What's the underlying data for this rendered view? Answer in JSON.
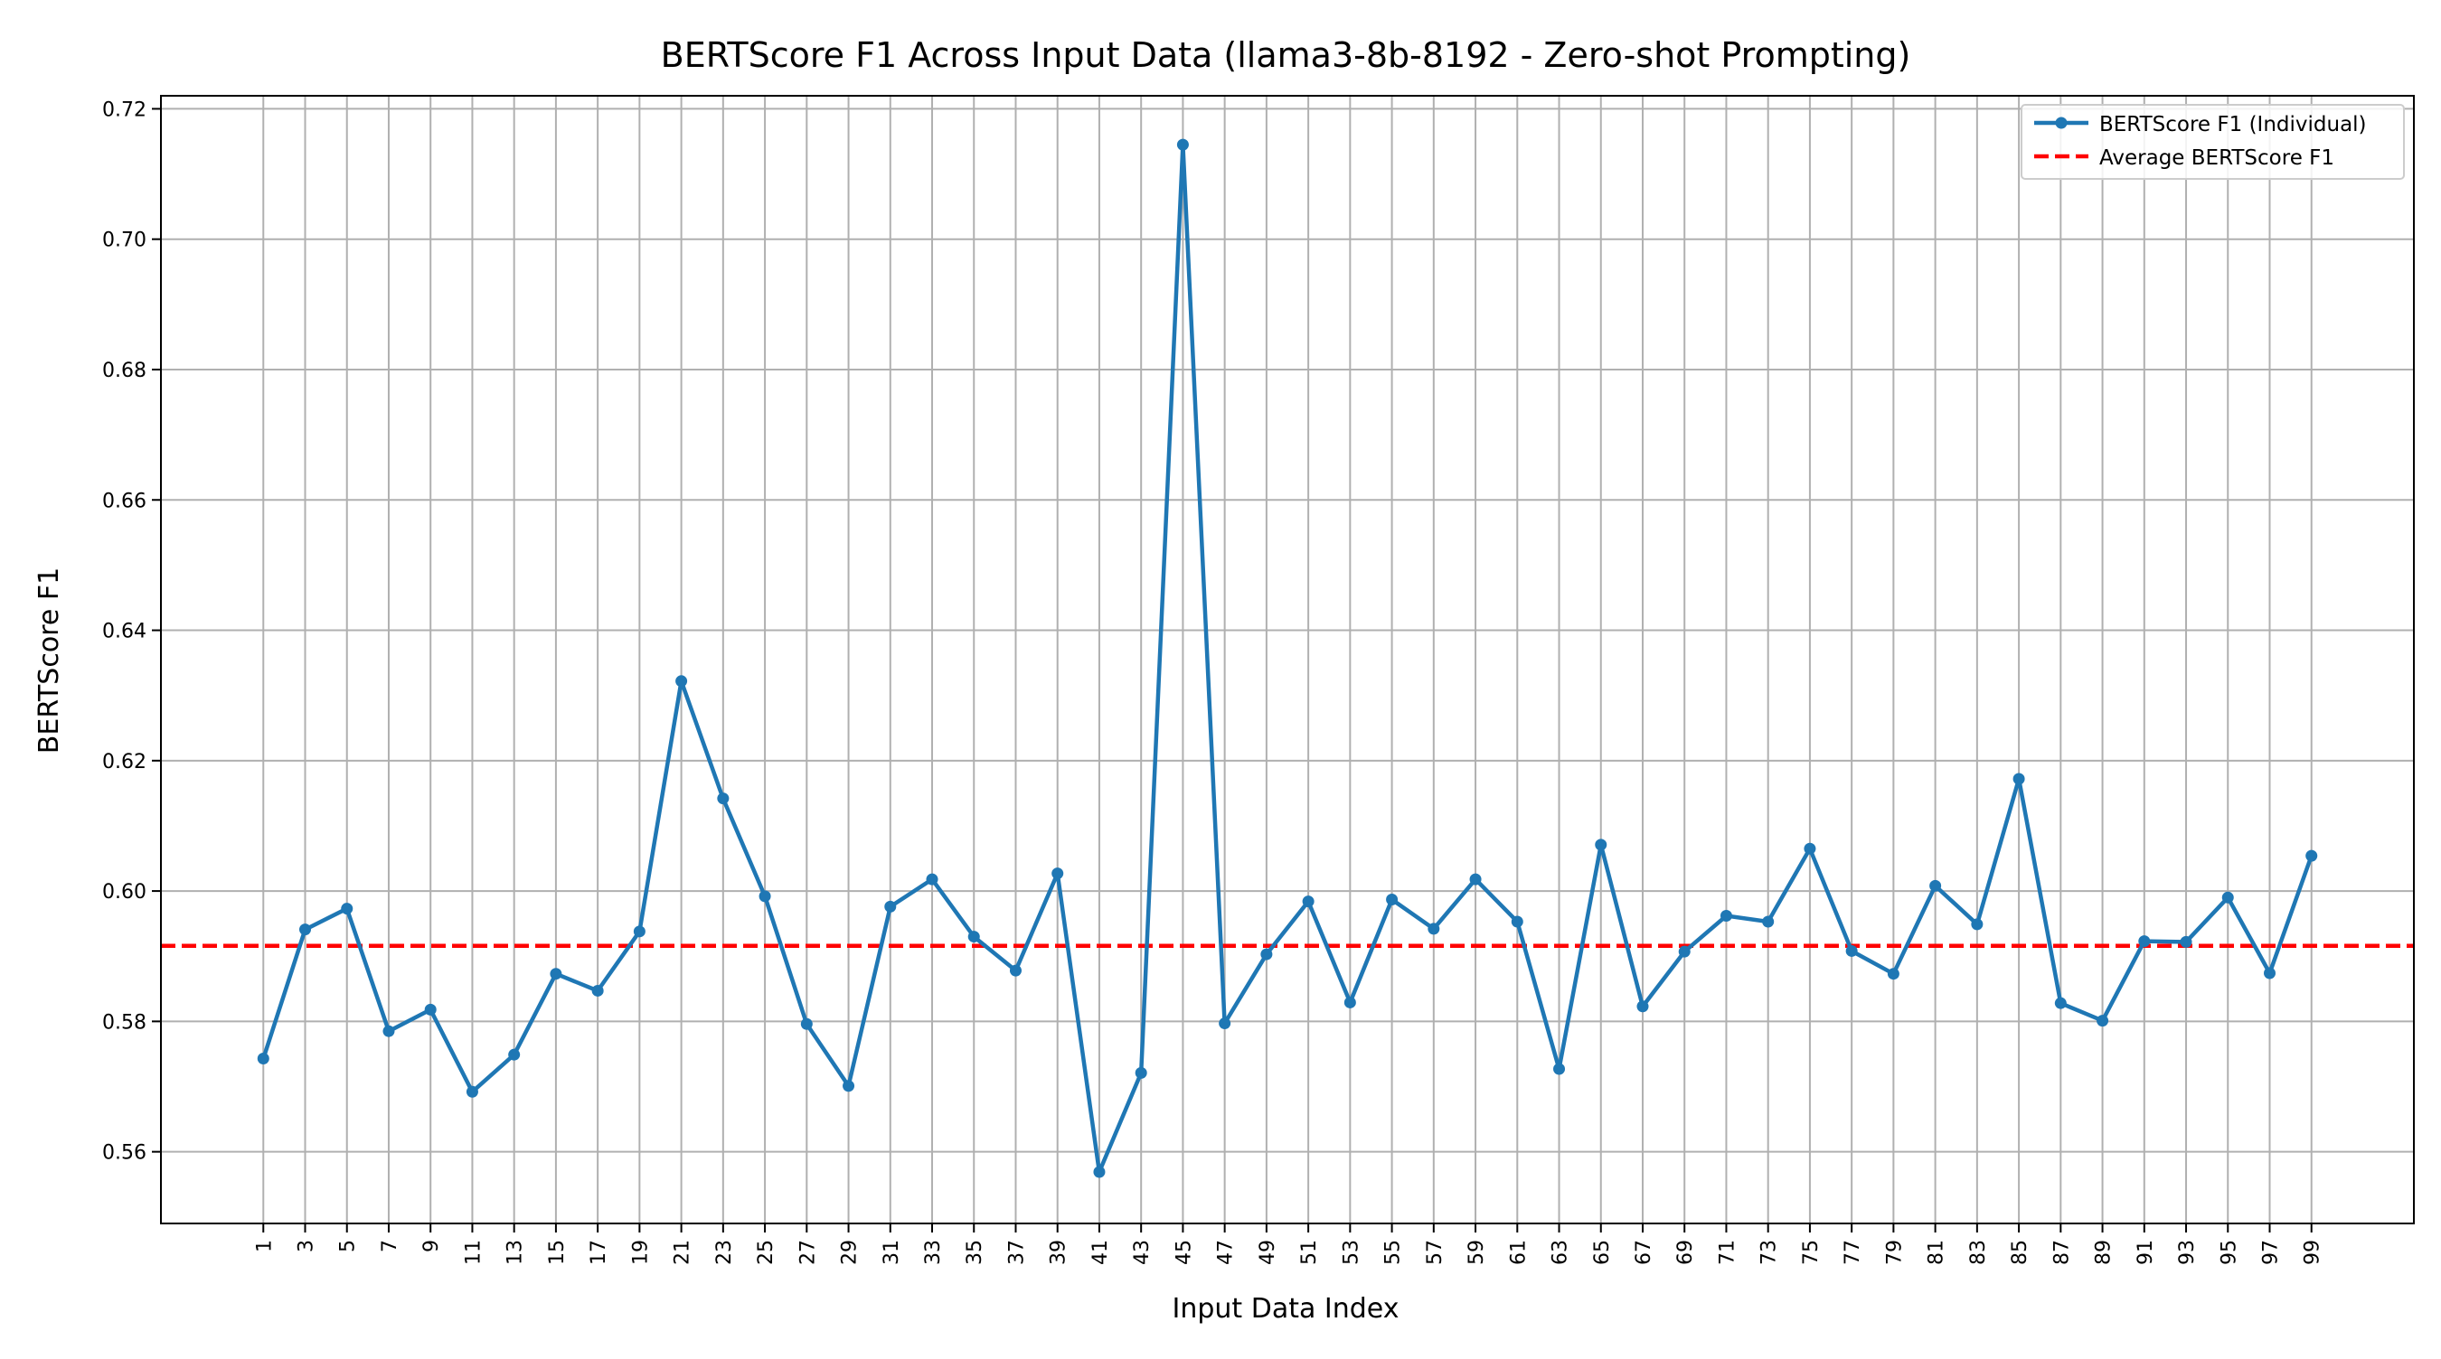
{
  "chart_data": {
    "type": "line",
    "title": "BERTScore F1 Across Input Data (llama3-8b-8192 - Zero-shot Prompting)",
    "xlabel": "Input Data Index",
    "ylabel": "BERTScore F1",
    "x": [
      1,
      3,
      5,
      7,
      9,
      11,
      13,
      15,
      17,
      19,
      21,
      23,
      25,
      27,
      29,
      31,
      33,
      35,
      37,
      39,
      41,
      43,
      45,
      47,
      49,
      51,
      53,
      55,
      57,
      59,
      61,
      63,
      65,
      67,
      69,
      71,
      73,
      75,
      77,
      79,
      81,
      83,
      85,
      87,
      89,
      91,
      93,
      95,
      97,
      99
    ],
    "xticks": [
      1,
      3,
      5,
      7,
      9,
      11,
      13,
      15,
      17,
      19,
      21,
      23,
      25,
      27,
      29,
      31,
      33,
      35,
      37,
      39,
      41,
      43,
      45,
      47,
      49,
      51,
      53,
      55,
      57,
      59,
      61,
      63,
      65,
      67,
      69,
      71,
      73,
      75,
      77,
      79,
      81,
      83,
      85,
      87,
      89,
      91,
      93,
      95,
      97,
      99
    ],
    "xlim": [
      -3.9,
      103.9
    ],
    "ylim": [
      0.549,
      0.722
    ],
    "yticks": [
      "0.56",
      "0.58",
      "0.60",
      "0.62",
      "0.64",
      "0.66",
      "0.68",
      "0.70",
      "0.72"
    ],
    "grid": true,
    "legend_position": "top-right",
    "series": [
      {
        "name": "BERTScore F1 (Individual)",
        "color": "#1f77b4",
        "style": "line-with-markers",
        "values": [
          0.5743,
          0.5941,
          0.5973,
          0.5785,
          0.5818,
          0.5692,
          0.5749,
          0.5873,
          0.5847,
          0.5938,
          0.6322,
          0.6142,
          0.5992,
          0.5796,
          0.5701,
          0.5976,
          0.6018,
          0.593,
          0.5878,
          0.6027,
          0.5569,
          0.5721,
          0.7145,
          0.5797,
          0.5903,
          0.5984,
          0.5829,
          0.5987,
          0.5942,
          0.6018,
          0.5953,
          0.5727,
          0.6071,
          0.5823,
          0.5907,
          0.5962,
          0.5953,
          0.6065,
          0.5908,
          0.5873,
          0.6008,
          0.5949,
          0.6172,
          0.5828,
          0.5801,
          0.5923,
          0.5922,
          0.599,
          0.5874,
          0.6054
        ]
      },
      {
        "name": "Average BERTScore F1",
        "color": "#ff0000",
        "style": "dashed-horizontal",
        "value": 0.5916
      }
    ]
  }
}
